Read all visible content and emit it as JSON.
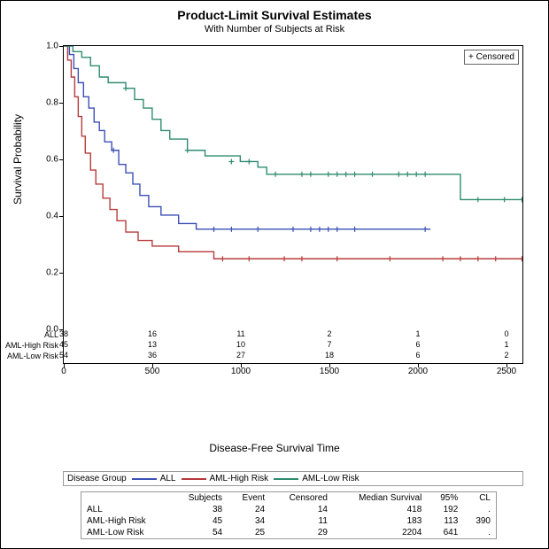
{
  "title": "Product-Limit Survival Estimates",
  "subtitle": "With Number of Subjects at Risk",
  "censored_label": "+ Censored",
  "ylabel": "Survival Probability",
  "xlabel": "Disease-Free Survival Time",
  "legend_title": "Disease Group",
  "chart": {
    "xlim": [
      0,
      2600
    ],
    "ylim": [
      0,
      1.0
    ],
    "xticks": [
      0,
      500,
      1000,
      1500,
      2000,
      2500
    ],
    "yticks": [
      0.0,
      0.2,
      0.4,
      0.6,
      0.8,
      1.0
    ],
    "background": "#ffffff",
    "colors": {
      "ALL": "#3b4fb5",
      "AML-High Risk": "#b73a3a",
      "AML-Low Risk": "#2e8b6f"
    },
    "line_width": 1.4,
    "series": [
      {
        "name": "ALL",
        "color": "#3b4fb5",
        "points": [
          [
            0,
            1.0
          ],
          [
            30,
            0.97
          ],
          [
            55,
            0.92
          ],
          [
            80,
            0.87
          ],
          [
            110,
            0.82
          ],
          [
            140,
            0.78
          ],
          [
            170,
            0.73
          ],
          [
            200,
            0.7
          ],
          [
            230,
            0.66
          ],
          [
            270,
            0.63
          ],
          [
            310,
            0.58
          ],
          [
            350,
            0.55
          ],
          [
            390,
            0.51
          ],
          [
            430,
            0.47
          ],
          [
            480,
            0.43
          ],
          [
            550,
            0.4
          ],
          [
            650,
            0.37
          ],
          [
            750,
            0.35
          ],
          [
            2080,
            0.35
          ]
        ],
        "censored": [
          [
            280,
            0.63
          ],
          [
            850,
            0.35
          ],
          [
            950,
            0.35
          ],
          [
            1100,
            0.35
          ],
          [
            1300,
            0.35
          ],
          [
            1400,
            0.35
          ],
          [
            1450,
            0.35
          ],
          [
            1500,
            0.35
          ],
          [
            1550,
            0.35
          ],
          [
            1650,
            0.35
          ],
          [
            2050,
            0.35
          ]
        ]
      },
      {
        "name": "AML-High Risk",
        "color": "#b73a3a",
        "points": [
          [
            0,
            1.0
          ],
          [
            20,
            0.95
          ],
          [
            40,
            0.89
          ],
          [
            60,
            0.82
          ],
          [
            80,
            0.75
          ],
          [
            100,
            0.68
          ],
          [
            120,
            0.62
          ],
          [
            150,
            0.56
          ],
          [
            180,
            0.51
          ],
          [
            220,
            0.46
          ],
          [
            260,
            0.42
          ],
          [
            300,
            0.38
          ],
          [
            350,
            0.34
          ],
          [
            420,
            0.31
          ],
          [
            500,
            0.29
          ],
          [
            650,
            0.27
          ],
          [
            850,
            0.245
          ],
          [
            2640,
            0.245
          ]
        ],
        "censored": [
          [
            900,
            0.245
          ],
          [
            1050,
            0.245
          ],
          [
            1250,
            0.245
          ],
          [
            1350,
            0.245
          ],
          [
            1550,
            0.245
          ],
          [
            1850,
            0.245
          ],
          [
            2150,
            0.245
          ],
          [
            2250,
            0.245
          ],
          [
            2350,
            0.245
          ],
          [
            2450,
            0.245
          ],
          [
            2600,
            0.245
          ]
        ]
      },
      {
        "name": "AML-Low Risk",
        "color": "#2e8b6f",
        "points": [
          [
            0,
            1.0
          ],
          [
            50,
            0.98
          ],
          [
            100,
            0.96
          ],
          [
            150,
            0.93
          ],
          [
            200,
            0.89
          ],
          [
            250,
            0.87
          ],
          [
            350,
            0.85
          ],
          [
            400,
            0.81
          ],
          [
            450,
            0.78
          ],
          [
            500,
            0.74
          ],
          [
            550,
            0.7
          ],
          [
            600,
            0.67
          ],
          [
            700,
            0.63
          ],
          [
            800,
            0.61
          ],
          [
            1000,
            0.59
          ],
          [
            1100,
            0.57
          ],
          [
            1150,
            0.545
          ],
          [
            2200,
            0.545
          ],
          [
            2250,
            0.455
          ],
          [
            2640,
            0.455
          ]
        ],
        "censored": [
          [
            350,
            0.85
          ],
          [
            700,
            0.63
          ],
          [
            950,
            0.59
          ],
          [
            1050,
            0.59
          ],
          [
            1200,
            0.545
          ],
          [
            1350,
            0.545
          ],
          [
            1400,
            0.545
          ],
          [
            1500,
            0.545
          ],
          [
            1550,
            0.545
          ],
          [
            1600,
            0.545
          ],
          [
            1650,
            0.545
          ],
          [
            1750,
            0.545
          ],
          [
            1900,
            0.545
          ],
          [
            1950,
            0.545
          ],
          [
            2000,
            0.545
          ],
          [
            2050,
            0.545
          ],
          [
            2350,
            0.455
          ],
          [
            2500,
            0.455
          ],
          [
            2600,
            0.455
          ]
        ]
      }
    ]
  },
  "risk_table": {
    "groups": [
      "ALL",
      "AML-High Risk",
      "AML-Low Risk"
    ],
    "rows": [
      [
        "38",
        "16",
        "11",
        "2",
        "1",
        "0"
      ],
      [
        "45",
        "13",
        "10",
        "7",
        "6",
        "1"
      ],
      [
        "54",
        "36",
        "27",
        "18",
        "6",
        "2"
      ]
    ],
    "at": [
      0,
      500,
      1000,
      1500,
      2000,
      2500
    ]
  },
  "summary": {
    "headers": [
      "",
      "Subjects",
      "Event",
      "Censored",
      "Median Survival",
      "95%",
      "CL"
    ],
    "rows": [
      [
        "ALL",
        "38",
        "24",
        "14",
        "418",
        "192",
        "."
      ],
      [
        "AML-High Risk",
        "45",
        "34",
        "11",
        "183",
        "113",
        "390"
      ],
      [
        "AML-Low Risk",
        "54",
        "25",
        "29",
        "2204",
        "641",
        "."
      ]
    ]
  }
}
